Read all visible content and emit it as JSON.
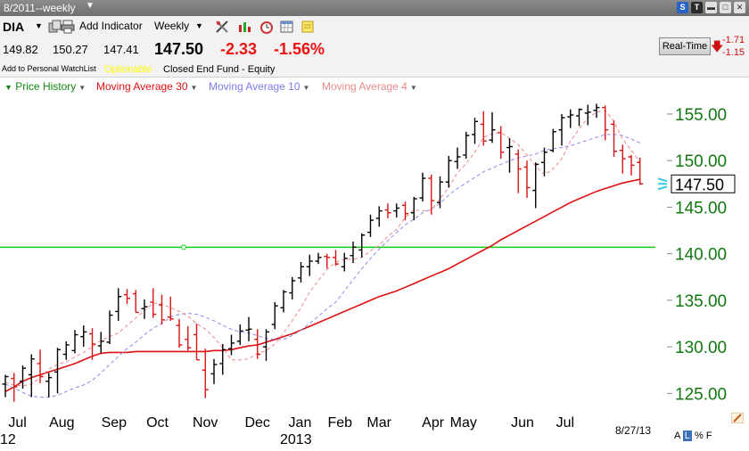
{
  "window": {
    "title": "8/2011--weekly",
    "controls": {
      "s": "S",
      "t": "T"
    }
  },
  "toolbar": {
    "symbol": "DIA",
    "add_indicator": "Add Indicator",
    "period": "Weekly",
    "icons": [
      "printer-icon",
      "draw-tools-icon",
      "chart-type-icon",
      "alarm-clock-icon",
      "calendar-icon",
      "sticky-note-icon"
    ]
  },
  "quote": {
    "open": "149.82",
    "high": "150.27",
    "low": "147.41",
    "last": "147.50",
    "change": "-2.33",
    "change_pct": "-1.56%",
    "watchlist": "Add to Personal WatchList",
    "optionable": "Optionable",
    "fund_type": "Closed End Fund - Equity"
  },
  "realtime": {
    "button": "Real-Time",
    "change1": "-1.71",
    "change2": "-1.15"
  },
  "legend": {
    "price": "Price History",
    "ma30": "Moving Average 30",
    "ma10": "Moving Average 10",
    "ma4": "Moving Average 4"
  },
  "colors": {
    "price_up": "#000000",
    "price_down": "#dd1111",
    "ma30": "#dd1111",
    "ma10": "#8888ee",
    "ma4": "#ee8888",
    "support_line": "#11cc11",
    "axis_labels": "#117711"
  },
  "footer": {
    "date": "8/27/13",
    "scale_a": "A",
    "scale_l": "L",
    "scale_pct": "%",
    "scale_f": "F"
  },
  "chart_data": {
    "type": "ohlc",
    "x_labels": [
      "Jul",
      "Aug",
      "Sep",
      "Oct",
      "Nov",
      "Dec",
      "Jan",
      "Feb",
      "Mar",
      "Apr",
      "May",
      "Jun",
      "Jul"
    ],
    "year_labels": [
      "12",
      "2013"
    ],
    "y_ticks": [
      "125.00",
      "130.00",
      "135.00",
      "140.00",
      "145.00",
      "150.00",
      "155.00"
    ],
    "ylim": [
      123.6,
      157.1
    ],
    "last_price_label": "147.50",
    "support_level": 140.7,
    "bars": [
      {
        "o": 126.0,
        "h": 127.0,
        "l": 124.6,
        "c": 126.8
      },
      {
        "o": 126.6,
        "h": 127.2,
        "l": 124.1,
        "c": 125.7
      },
      {
        "o": 126.3,
        "h": 128.0,
        "l": 125.5,
        "c": 127.7
      },
      {
        "o": 127.0,
        "h": 129.2,
        "l": 124.6,
        "c": 128.7
      },
      {
        "o": 128.2,
        "h": 129.7,
        "l": 126.1,
        "c": 126.8
      },
      {
        "o": 126.3,
        "h": 127.2,
        "l": 124.6,
        "c": 126.7
      },
      {
        "o": 127.3,
        "h": 129.9,
        "l": 125.0,
        "c": 129.7
      },
      {
        "o": 129.2,
        "h": 130.6,
        "l": 128.6,
        "c": 130.2
      },
      {
        "o": 129.6,
        "h": 131.8,
        "l": 129.3,
        "c": 131.3
      },
      {
        "o": 131.1,
        "h": 132.3,
        "l": 130.0,
        "c": 131.6
      },
      {
        "o": 131.4,
        "h": 132.0,
        "l": 128.6,
        "c": 130.3
      },
      {
        "o": 130.1,
        "h": 131.6,
        "l": 129.3,
        "c": 130.6
      },
      {
        "o": 130.5,
        "h": 133.9,
        "l": 130.3,
        "c": 133.4
      },
      {
        "o": 133.8,
        "h": 136.3,
        "l": 132.8,
        "c": 135.4
      },
      {
        "o": 135.6,
        "h": 136.2,
        "l": 134.6,
        "c": 135.2
      },
      {
        "o": 135.7,
        "h": 136.1,
        "l": 133.7,
        "c": 133.7
      },
      {
        "o": 134.1,
        "h": 135.1,
        "l": 133.0,
        "c": 134.3
      },
      {
        "o": 134.8,
        "h": 136.3,
        "l": 133.1,
        "c": 133.5
      },
      {
        "o": 134.5,
        "h": 135.6,
        "l": 132.4,
        "c": 132.9
      },
      {
        "o": 133.2,
        "h": 135.4,
        "l": 132.8,
        "c": 133.0
      },
      {
        "o": 132.3,
        "h": 133.0,
        "l": 129.9,
        "c": 130.2
      },
      {
        "o": 130.8,
        "h": 132.2,
        "l": 129.6,
        "c": 129.9
      },
      {
        "o": 131.3,
        "h": 132.5,
        "l": 128.6,
        "c": 128.6
      },
      {
        "o": 127.5,
        "h": 129.8,
        "l": 124.5,
        "c": 125.4
      },
      {
        "o": 127.1,
        "h": 128.7,
        "l": 126.0,
        "c": 128.1
      },
      {
        "o": 128.2,
        "h": 130.3,
        "l": 127.0,
        "c": 129.7
      },
      {
        "o": 129.8,
        "h": 131.3,
        "l": 129.1,
        "c": 130.4
      },
      {
        "o": 130.6,
        "h": 132.4,
        "l": 130.2,
        "c": 131.7
      },
      {
        "o": 131.8,
        "h": 133.2,
        "l": 130.6,
        "c": 131.9
      },
      {
        "o": 130.8,
        "h": 131.9,
        "l": 128.7,
        "c": 129.2
      },
      {
        "o": 130.0,
        "h": 131.9,
        "l": 128.5,
        "c": 131.6
      },
      {
        "o": 132.4,
        "h": 134.8,
        "l": 131.9,
        "c": 134.4
      },
      {
        "o": 134.2,
        "h": 136.1,
        "l": 133.7,
        "c": 135.9
      },
      {
        "o": 135.8,
        "h": 137.5,
        "l": 135.1,
        "c": 137.1
      },
      {
        "o": 137.4,
        "h": 139.1,
        "l": 136.9,
        "c": 138.6
      },
      {
        "o": 138.6,
        "h": 139.9,
        "l": 137.6,
        "c": 139.2
      },
      {
        "o": 139.2,
        "h": 140.1,
        "l": 138.9,
        "c": 139.6
      },
      {
        "o": 139.7,
        "h": 140.0,
        "l": 138.4,
        "c": 139.6
      },
      {
        "o": 139.6,
        "h": 140.4,
        "l": 138.7,
        "c": 138.9
      },
      {
        "o": 138.6,
        "h": 140.1,
        "l": 138.1,
        "c": 139.5
      },
      {
        "o": 139.8,
        "h": 141.3,
        "l": 139.0,
        "c": 140.7
      },
      {
        "o": 140.4,
        "h": 142.2,
        "l": 139.6,
        "c": 142.0
      },
      {
        "o": 142.3,
        "h": 144.2,
        "l": 141.8,
        "c": 143.6
      },
      {
        "o": 143.8,
        "h": 145.1,
        "l": 142.9,
        "c": 144.6
      },
      {
        "o": 144.7,
        "h": 145.4,
        "l": 143.8,
        "c": 144.4
      },
      {
        "o": 144.6,
        "h": 145.4,
        "l": 143.9,
        "c": 144.9
      },
      {
        "o": 145.2,
        "h": 145.6,
        "l": 143.6,
        "c": 144.3
      },
      {
        "o": 144.4,
        "h": 146.1,
        "l": 143.6,
        "c": 145.9
      },
      {
        "o": 146.0,
        "h": 148.7,
        "l": 145.6,
        "c": 148.1
      },
      {
        "o": 148.1,
        "h": 148.5,
        "l": 144.2,
        "c": 145.7
      },
      {
        "o": 145.5,
        "h": 148.3,
        "l": 144.9,
        "c": 147.7
      },
      {
        "o": 147.7,
        "h": 150.5,
        "l": 147.1,
        "c": 150.0
      },
      {
        "o": 149.9,
        "h": 151.4,
        "l": 149.1,
        "c": 150.4
      },
      {
        "o": 150.6,
        "h": 153.1,
        "l": 150.2,
        "c": 152.7
      },
      {
        "o": 152.8,
        "h": 154.6,
        "l": 151.8,
        "c": 154.2
      },
      {
        "o": 153.9,
        "h": 155.3,
        "l": 151.6,
        "c": 152.1
      },
      {
        "o": 152.2,
        "h": 155.2,
        "l": 151.9,
        "c": 153.3
      },
      {
        "o": 153.0,
        "h": 153.7,
        "l": 150.2,
        "c": 150.9
      },
      {
        "o": 151.4,
        "h": 152.4,
        "l": 148.7,
        "c": 151.5
      },
      {
        "o": 150.7,
        "h": 151.2,
        "l": 146.5,
        "c": 149.1
      },
      {
        "o": 149.3,
        "h": 150.0,
        "l": 146.0,
        "c": 147.1
      },
      {
        "o": 146.8,
        "h": 149.8,
        "l": 144.9,
        "c": 149.6
      },
      {
        "o": 149.8,
        "h": 151.4,
        "l": 148.3,
        "c": 150.9
      },
      {
        "o": 151.1,
        "h": 153.4,
        "l": 150.9,
        "c": 153.1
      },
      {
        "o": 153.3,
        "h": 155.0,
        "l": 151.6,
        "c": 154.6
      },
      {
        "o": 154.7,
        "h": 155.5,
        "l": 153.5,
        "c": 154.9
      },
      {
        "o": 154.8,
        "h": 155.6,
        "l": 153.7,
        "c": 155.5
      },
      {
        "o": 155.1,
        "h": 156.0,
        "l": 153.8,
        "c": 155.2
      },
      {
        "o": 155.4,
        "h": 156.1,
        "l": 154.6,
        "c": 155.7
      },
      {
        "o": 155.7,
        "h": 155.9,
        "l": 152.2,
        "c": 153.3
      },
      {
        "o": 153.9,
        "h": 154.3,
        "l": 150.4,
        "c": 151.0
      },
      {
        "o": 151.1,
        "h": 151.7,
        "l": 148.6,
        "c": 150.2
      },
      {
        "o": 150.4,
        "h": 150.6,
        "l": 148.4,
        "c": 149.5
      },
      {
        "o": 149.8,
        "h": 150.3,
        "l": 147.4,
        "c": 147.5
      }
    ],
    "ma30": [
      125.2,
      125.7,
      126.3,
      126.7,
      127.0,
      127.3,
      127.6,
      127.9,
      128.2,
      128.6,
      129.0,
      129.3,
      129.4,
      129.4,
      129.4,
      129.5,
      129.5,
      129.5,
      129.5,
      129.5,
      129.5,
      129.5,
      129.5,
      129.5,
      129.6,
      129.6,
      129.7,
      129.9,
      130.1,
      130.2,
      130.5,
      130.8,
      131.1,
      131.4,
      131.8,
      132.2,
      132.6,
      133.0,
      133.4,
      133.8,
      134.2,
      134.6,
      135.0,
      135.4,
      135.7,
      136.0,
      136.4,
      136.8,
      137.2,
      137.6,
      138.0,
      138.4,
      138.9,
      139.4,
      139.9,
      140.4,
      140.9,
      141.5,
      142.0,
      142.5,
      143.0,
      143.5,
      144.0,
      144.5,
      145.0,
      145.5,
      145.9,
      146.3,
      146.7,
      147.0,
      147.3,
      147.6,
      147.8,
      148.0
    ],
    "ma10": [
      126.0,
      125.6,
      125.1,
      124.7,
      124.6,
      124.6,
      124.8,
      125.2,
      125.6,
      125.9,
      126.4,
      127.2,
      128.1,
      129.0,
      129.8,
      130.5,
      131.3,
      132.0,
      132.5,
      133.2,
      133.5,
      133.6,
      133.5,
      133.2,
      132.8,
      132.3,
      131.9,
      131.6,
      131.5,
      131.2,
      130.9,
      130.8,
      130.8,
      131.2,
      131.8,
      132.5,
      133.3,
      134.1,
      134.8,
      136.0,
      137.2,
      138.4,
      139.5,
      140.5,
      141.4,
      142.3,
      143.1,
      143.7,
      144.4,
      144.8,
      145.4,
      146.3,
      147.0,
      147.6,
      148.2,
      148.8,
      149.2,
      149.6,
      150.0,
      150.3,
      150.5,
      150.7,
      151.1,
      151.3,
      151.4,
      151.6,
      151.9,
      152.2,
      152.5,
      152.8,
      152.8,
      152.7,
      152.3,
      151.9
    ],
    "ma4": [
      126.2,
      125.9,
      125.8,
      126.0,
      126.7,
      127.6,
      128.1,
      128.4,
      128.9,
      129.4,
      130.0,
      130.7,
      131.1,
      131.5,
      132.3,
      133.1,
      133.9,
      134.7,
      134.6,
      134.2,
      133.8,
      133.3,
      132.5,
      131.9,
      131.0,
      129.9,
      128.6,
      128.6,
      128.7,
      129.3,
      129.6,
      130.3,
      131.5,
      132.8,
      134.2,
      135.9,
      137.1,
      138.3,
      139.1,
      139.4,
      139.4,
      139.6,
      140.3,
      140.9,
      141.9,
      142.6,
      143.9,
      144.7,
      144.6,
      144.7,
      145.9,
      147.1,
      148.7,
      149.7,
      150.9,
      152.5,
      152.9,
      153.0,
      152.4,
      151.7,
      150.6,
      149.4,
      148.5,
      149.1,
      150.2,
      152.1,
      153.4,
      154.6,
      155.2,
      155.4,
      154.2,
      152.3,
      151.1,
      149.8
    ]
  }
}
